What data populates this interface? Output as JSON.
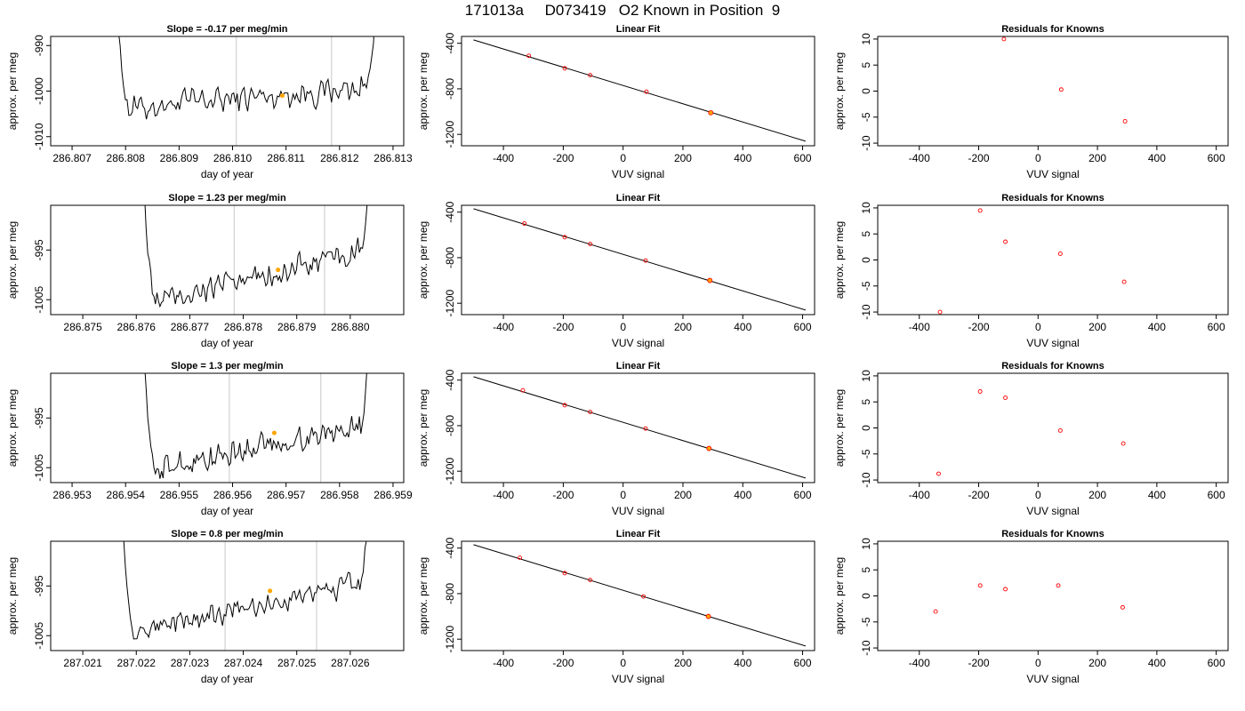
{
  "page": {
    "title": "171013a     D073419   O2 Known in Position  9"
  },
  "colors": {
    "trace": "#000000",
    "marker": "#ffa500",
    "points": "#ff0000",
    "grid": "#c8c8c8",
    "fit": "#000000"
  },
  "chart_data": [
    {
      "type": "line",
      "row": 1,
      "panel": "time-series",
      "title": "Slope =  -0.17  per meg/min",
      "xlabel": "day of year",
      "ylabel": "approx. per meg",
      "xlim": [
        286.8066,
        286.8132
      ],
      "ylim": [
        -1012,
        -988
      ],
      "xticks": [
        "286.807",
        "286.808",
        "286.809",
        "286.810",
        "286.811",
        "286.812",
        "286.813"
      ],
      "xtick_values": [
        286.807,
        286.808,
        286.809,
        286.81,
        286.811,
        286.812,
        286.813
      ],
      "yticks": [
        "-990",
        "-1000",
        "-1010"
      ],
      "ytick_values": [
        -990,
        -1000,
        -1010
      ],
      "vlines": [
        286.81007,
        286.81185
      ],
      "marker": {
        "x": 286.81093,
        "y": -1001
      },
      "trace": {
        "x_start": 286.8078,
        "x_end": 286.8127,
        "base_start": -1004,
        "base_end": -999,
        "noise": 2.2,
        "spike_left": -975,
        "spike_right": -975
      }
    },
    {
      "type": "scatter",
      "row": 1,
      "panel": "linear-fit",
      "title": "Linear Fit",
      "xlabel": "VUV signal",
      "ylabel": "approx. per meg",
      "xlim": [
        -540,
        640
      ],
      "ylim": [
        -1300,
        -340
      ],
      "xticks": [
        "-400",
        "-200",
        "0",
        "200",
        "400",
        "600"
      ],
      "xtick_values": [
        -400,
        -200,
        0,
        200,
        400,
        600
      ],
      "yticks": [
        "-400",
        "-800",
        "-1200"
      ],
      "ytick_values": [
        -400,
        -800,
        -1200
      ],
      "x": [
        -315,
        -195,
        -110,
        78,
        293
      ],
      "y": [
        -510,
        -620,
        -680,
        -825,
        -1010
      ],
      "highlight_index": 4,
      "fit_line": {
        "x": [
          -500,
          610
        ],
        "y": [
          -370,
          -1260
        ]
      }
    },
    {
      "type": "scatter",
      "row": 1,
      "panel": "residuals",
      "title": "Residuals for Knowns",
      "xlabel": "VUV signal",
      "ylabel": "approx. per meg",
      "xlim": [
        -540,
        640
      ],
      "ylim": [
        -10.5,
        10.5
      ],
      "xticks": [
        "-400",
        "-200",
        "0",
        "200",
        "400",
        "600"
      ],
      "xtick_values": [
        -400,
        -200,
        0,
        200,
        400,
        600
      ],
      "yticks": [
        "10",
        "5",
        "0",
        "-5",
        "-10"
      ],
      "ytick_values": [
        10,
        5,
        0,
        -5,
        -10
      ],
      "x": [
        -115,
        78,
        293
      ],
      "y": [
        10,
        0.3,
        -5.8
      ]
    },
    {
      "type": "line",
      "row": 2,
      "panel": "time-series",
      "title": "Slope =  1.23  per meg/min",
      "xlabel": "day of year",
      "ylabel": "approx. per meg",
      "xlim": [
        286.8744,
        286.881
      ],
      "ylim": [
        -1008,
        -986
      ],
      "xticks": [
        "286.875",
        "286.876",
        "286.877",
        "286.878",
        "286.879",
        "286.880"
      ],
      "xtick_values": [
        286.875,
        286.876,
        286.877,
        286.878,
        286.879,
        286.88
      ],
      "yticks": [
        "-995",
        "-1005"
      ],
      "ytick_values": [
        -995,
        -1005
      ],
      "vlines": [
        286.87783,
        286.87952
      ],
      "marker": {
        "x": 286.87865,
        "y": -999
      },
      "trace": {
        "x_start": 286.8761,
        "x_end": 286.8804,
        "base_start": -1006,
        "base_end": -995,
        "noise": 1.8,
        "spike_left": -970,
        "spike_right": -970
      }
    },
    {
      "type": "scatter",
      "row": 2,
      "panel": "linear-fit",
      "title": "Linear Fit",
      "xlabel": "VUV signal",
      "ylabel": "approx. per meg",
      "xlim": [
        -540,
        640
      ],
      "ylim": [
        -1300,
        -340
      ],
      "xticks": [
        "-400",
        "-200",
        "0",
        "200",
        "400",
        "600"
      ],
      "xtick_values": [
        -400,
        -200,
        0,
        200,
        400,
        600
      ],
      "yticks": [
        "-400",
        "-800",
        "-1200"
      ],
      "ytick_values": [
        -400,
        -800,
        -1200
      ],
      "x": [
        -330,
        -195,
        -110,
        75,
        290
      ],
      "y": [
        -500,
        -620,
        -680,
        -825,
        -1000
      ],
      "highlight_index": 4,
      "fit_line": {
        "x": [
          -500,
          610
        ],
        "y": [
          -370,
          -1260
        ]
      }
    },
    {
      "type": "scatter",
      "row": 2,
      "panel": "residuals",
      "title": "Residuals for Knowns",
      "xlabel": "VUV signal",
      "ylabel": "approx. per meg",
      "xlim": [
        -540,
        640
      ],
      "ylim": [
        -10.5,
        10.5
      ],
      "xticks": [
        "-400",
        "-200",
        "0",
        "200",
        "400",
        "600"
      ],
      "xtick_values": [
        -400,
        -200,
        0,
        200,
        400,
        600
      ],
      "yticks": [
        "10",
        "5",
        "0",
        "-5",
        "-10"
      ],
      "ytick_values": [
        10,
        5,
        0,
        -5,
        -10
      ],
      "x": [
        -330,
        -195,
        -110,
        75,
        290
      ],
      "y": [
        -10,
        9.5,
        3.5,
        1.2,
        -4.2
      ]
    },
    {
      "type": "line",
      "row": 3,
      "panel": "time-series",
      "title": "Slope =  1.3  per meg/min",
      "xlabel": "day of year",
      "ylabel": "approx. per meg",
      "xlim": [
        286.9526,
        286.9592
      ],
      "ylim": [
        -1008,
        -986
      ],
      "xticks": [
        "286.953",
        "286.954",
        "286.955",
        "286.956",
        "286.957",
        "286.958",
        "286.959"
      ],
      "xtick_values": [
        286.953,
        286.954,
        286.955,
        286.956,
        286.957,
        286.958,
        286.959
      ],
      "yticks": [
        "-995",
        "-1005"
      ],
      "ytick_values": [
        -995,
        -1005
      ],
      "vlines": [
        286.95594,
        286.95765
      ],
      "marker": {
        "x": 286.95678,
        "y": -998
      },
      "trace": {
        "x_start": 286.9543,
        "x_end": 286.9586,
        "base_start": -1006,
        "base_end": -996,
        "noise": 1.9,
        "spike_left": -970,
        "spike_right": -970
      }
    },
    {
      "type": "scatter",
      "row": 3,
      "panel": "linear-fit",
      "title": "Linear Fit",
      "xlabel": "VUV signal",
      "ylabel": "approx. per meg",
      "xlim": [
        -540,
        640
      ],
      "ylim": [
        -1300,
        -340
      ],
      "xticks": [
        "-400",
        "-200",
        "0",
        "200",
        "400",
        "600"
      ],
      "xtick_values": [
        -400,
        -200,
        0,
        200,
        400,
        600
      ],
      "yticks": [
        "-400",
        "-800",
        "-1200"
      ],
      "ytick_values": [
        -400,
        -800,
        -1200
      ],
      "x": [
        -335,
        -195,
        -110,
        75,
        287
      ],
      "y": [
        -490,
        -620,
        -680,
        -825,
        -1000
      ],
      "highlight_index": 4,
      "fit_line": {
        "x": [
          -500,
          610
        ],
        "y": [
          -370,
          -1260
        ]
      }
    },
    {
      "type": "scatter",
      "row": 3,
      "panel": "residuals",
      "title": "Residuals for Knowns",
      "xlabel": "VUV signal",
      "ylabel": "approx. per meg",
      "xlim": [
        -540,
        640
      ],
      "ylim": [
        -10.5,
        10.5
      ],
      "xticks": [
        "-400",
        "-200",
        "0",
        "200",
        "400",
        "600"
      ],
      "xtick_values": [
        -400,
        -200,
        0,
        200,
        400,
        600
      ],
      "yticks": [
        "10",
        "5",
        "0",
        "-5",
        "-10"
      ],
      "ytick_values": [
        10,
        5,
        0,
        -5,
        -10
      ],
      "x": [
        -335,
        -195,
        -110,
        75,
        287
      ],
      "y": [
        -8.8,
        7,
        5.8,
        -0.5,
        -3
      ]
    },
    {
      "type": "line",
      "row": 4,
      "panel": "time-series",
      "title": "Slope =  0.8  per meg/min",
      "xlabel": "day of year",
      "ylabel": "approx. per meg",
      "xlim": [
        287.0204,
        287.027
      ],
      "ylim": [
        -1008,
        -986
      ],
      "xticks": [
        "287.021",
        "287.022",
        "287.023",
        "287.024",
        "287.025",
        "287.026"
      ],
      "xtick_values": [
        287.021,
        287.022,
        287.023,
        287.024,
        287.025,
        287.026
      ],
      "yticks": [
        "-995",
        "-1005"
      ],
      "ytick_values": [
        -995,
        -1005
      ],
      "vlines": [
        287.02366,
        287.02537
      ],
      "marker": {
        "x": 287.0245,
        "y": -996
      },
      "trace": {
        "x_start": 287.0217,
        "x_end": 287.0264,
        "base_start": -1005,
        "base_end": -994,
        "noise": 1.6,
        "spike_left": -970,
        "spike_right": -970
      }
    },
    {
      "type": "scatter",
      "row": 4,
      "panel": "linear-fit",
      "title": "Linear Fit",
      "xlabel": "VUV signal",
      "ylabel": "approx. per meg",
      "xlim": [
        -540,
        640
      ],
      "ylim": [
        -1300,
        -340
      ],
      "xticks": [
        "-400",
        "-200",
        "0",
        "200",
        "400",
        "600"
      ],
      "xtick_values": [
        -400,
        -200,
        0,
        200,
        400,
        600
      ],
      "yticks": [
        "-400",
        "-800",
        "-1200"
      ],
      "ytick_values": [
        -400,
        -800,
        -1200
      ],
      "x": [
        -345,
        -195,
        -110,
        68,
        285
      ],
      "y": [
        -485,
        -620,
        -680,
        -825,
        -1000
      ],
      "highlight_index": 4,
      "fit_line": {
        "x": [
          -500,
          610
        ],
        "y": [
          -370,
          -1260
        ]
      }
    },
    {
      "type": "scatter",
      "row": 4,
      "panel": "residuals",
      "title": "Residuals for Knowns",
      "xlabel": "VUV signal",
      "ylabel": "approx. per meg",
      "xlim": [
        -540,
        640
      ],
      "ylim": [
        -10.5,
        10.5
      ],
      "xticks": [
        "-400",
        "-200",
        "0",
        "200",
        "400",
        "600"
      ],
      "xtick_values": [
        -400,
        -200,
        0,
        200,
        400,
        600
      ],
      "yticks": [
        "10",
        "5",
        "0",
        "-5",
        "-10"
      ],
      "ytick_values": [
        10,
        5,
        0,
        -5,
        -10
      ],
      "x": [
        -345,
        -195,
        -110,
        68,
        285
      ],
      "y": [
        -3,
        2,
        1.3,
        2,
        -2.2
      ]
    }
  ]
}
